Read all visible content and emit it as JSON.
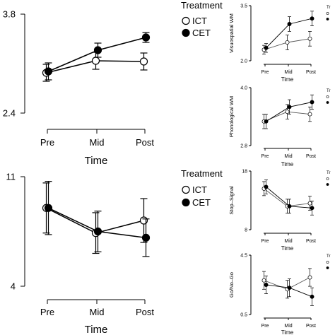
{
  "chart_data": [
    {
      "type": "line",
      "xlabel": "Time",
      "ylabel": "",
      "categories": [
        "Pre",
        "Mid",
        "Post"
      ],
      "ylim": [
        2.4,
        3.8
      ],
      "yticks": [
        "2.4",
        "3.8"
      ],
      "legend_title": "Treatment",
      "legend_position": "right",
      "series": [
        {
          "name": "ICT",
          "marker": "open",
          "values": [
            2.97,
            3.14,
            3.13
          ],
          "err": [
            0.12,
            0.12,
            0.12
          ]
        },
        {
          "name": "CET",
          "marker": "filled",
          "values": [
            2.99,
            3.29,
            3.47
          ],
          "err": [
            0.12,
            0.1,
            0.07
          ]
        }
      ]
    },
    {
      "type": "line",
      "xlabel": "Time",
      "ylabel": "",
      "categories": [
        "Pre",
        "Mid",
        "Post"
      ],
      "ylim": [
        4,
        11
      ],
      "yticks": [
        "4",
        "11"
      ],
      "legend_title": "Treatment",
      "legend_position": "right",
      "series": [
        {
          "name": "ICT",
          "marker": "open",
          "values": [
            9.0,
            7.4,
            8.2
          ],
          "err": [
            1.6,
            1.3,
            1.4
          ]
        },
        {
          "name": "CET",
          "marker": "filled",
          "values": [
            9.0,
            7.5,
            7.1
          ],
          "err": [
            1.7,
            1.3,
            1.2
          ]
        }
      ]
    },
    {
      "type": "line",
      "xlabel": "Time",
      "ylabel": "Visuospatial WM",
      "categories": [
        "Pre",
        "Mid",
        "Post"
      ],
      "ylim": [
        2.0,
        3.5
      ],
      "yticks": [
        "2.0",
        "3.5"
      ],
      "legend_title": "Tr",
      "legend_position": "right",
      "series": [
        {
          "name": "",
          "marker": "open",
          "values": [
            2.3,
            2.5,
            2.6
          ],
          "err": [
            0.12,
            0.2,
            0.2
          ]
        },
        {
          "name": "",
          "marker": "filled",
          "values": [
            2.35,
            3.0,
            3.15
          ],
          "err": [
            0.12,
            0.2,
            0.2
          ]
        }
      ]
    },
    {
      "type": "line",
      "xlabel": "Time",
      "ylabel": "Phonological WM",
      "categories": [
        "Pre",
        "Mid",
        "Post"
      ],
      "ylim": [
        2.8,
        4.0
      ],
      "yticks": [
        "2.8",
        "4.0"
      ],
      "legend_title": "Tr",
      "legend_position": "right",
      "series": [
        {
          "name": "",
          "marker": "open",
          "values": [
            3.3,
            3.5,
            3.45
          ],
          "err": [
            0.15,
            0.15,
            0.15
          ]
        },
        {
          "name": "",
          "marker": "filled",
          "values": [
            3.3,
            3.6,
            3.7
          ],
          "err": [
            0.15,
            0.15,
            0.15
          ]
        }
      ]
    },
    {
      "type": "line",
      "xlabel": "Time",
      "ylabel": "Stop–Signal",
      "categories": [
        "Pre",
        "Mid",
        "Post"
      ],
      "ylim": [
        8,
        18
      ],
      "yticks": [
        "8",
        "18"
      ],
      "legend_title": "Tr",
      "legend_position": "right",
      "series": [
        {
          "name": "",
          "marker": "open",
          "values": [
            15.0,
            12.0,
            12.5
          ],
          "err": [
            1.2,
            1.2,
            1.2
          ]
        },
        {
          "name": "",
          "marker": "filled",
          "values": [
            15.3,
            12.0,
            11.7
          ],
          "err": [
            1.2,
            1.2,
            1.2
          ]
        }
      ]
    },
    {
      "type": "line",
      "xlabel": "Time",
      "ylabel": "Go/No–Go",
      "categories": [
        "Pre",
        "Mid",
        "Post"
      ],
      "ylim": [
        0.5,
        4.5
      ],
      "yticks": [
        "0.5",
        "4.5"
      ],
      "legend_title": "Tr",
      "legend_position": "right",
      "series": [
        {
          "name": "",
          "marker": "open",
          "values": [
            2.8,
            2.2,
            3.0
          ],
          "err": [
            0.6,
            0.6,
            0.6
          ]
        },
        {
          "name": "",
          "marker": "filled",
          "values": [
            2.5,
            2.3,
            1.7
          ],
          "err": [
            0.6,
            0.6,
            0.6
          ]
        }
      ]
    }
  ]
}
